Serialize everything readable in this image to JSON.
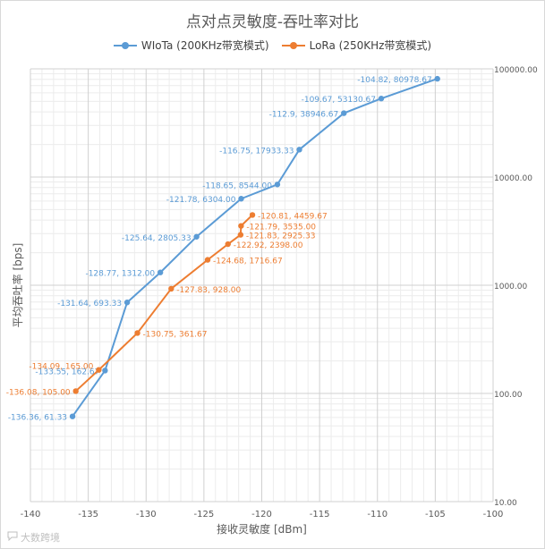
{
  "chart_data": {
    "type": "scatter",
    "title": "点对点灵敏度-吞吐率对比",
    "xlabel": "接收灵敏度 [dBm]",
    "ylabel": "平均吞吐率 [bps]",
    "xlim": [
      -140,
      -100
    ],
    "ylim": [
      10,
      100000
    ],
    "yscale": "log",
    "grid": true,
    "legend_position": "top",
    "x_ticks": [
      "-140",
      "-135",
      "-130",
      "-125",
      "-120",
      "-115",
      "-110",
      "-105",
      "-100"
    ],
    "y_ticks": [
      "10.00",
      "100.00",
      "1000.00",
      "10000.00",
      "100000.00"
    ],
    "series": [
      {
        "name": "WIoTa (200KHz带宽模式)",
        "color": "#5b9bd5",
        "points": [
          {
            "x": -136.36,
            "y": 61.33,
            "label": "-136.36, 61.33"
          },
          {
            "x": -133.55,
            "y": 162.67,
            "label": "-133.55, 162.67"
          },
          {
            "x": -131.64,
            "y": 693.33,
            "label": "-131.64, 693.33"
          },
          {
            "x": -128.77,
            "y": 1312.0,
            "label": "-128.77, 1312.00"
          },
          {
            "x": -125.64,
            "y": 2805.33,
            "label": "-125.64, 2805.33"
          },
          {
            "x": -121.78,
            "y": 6304.0,
            "label": "-121.78, 6304.00"
          },
          {
            "x": -118.65,
            "y": 8544.0,
            "label": "-118.65, 8544.00"
          },
          {
            "x": -116.75,
            "y": 17933.33,
            "label": "-116.75, 17933.33"
          },
          {
            "x": -112.9,
            "y": 38946.67,
            "label": "-112.9, 38946.67"
          },
          {
            "x": -109.67,
            "y": 53130.67,
            "label": "-109.67, 53130.67"
          },
          {
            "x": -104.82,
            "y": 80978.67,
            "label": "-104.82, 80978.67"
          }
        ]
      },
      {
        "name": "LoRa (250KHz带宽模式)",
        "color": "#ed7d31",
        "points": [
          {
            "x": -136.08,
            "y": 105.0,
            "label": "-136.08, 105.00"
          },
          {
            "x": -134.09,
            "y": 165.0,
            "label": "-134.09, 165.00"
          },
          {
            "x": -130.75,
            "y": 361.67,
            "label": "-130.75, 361.67"
          },
          {
            "x": -127.83,
            "y": 928.0,
            "label": "-127.83, 928.00"
          },
          {
            "x": -124.68,
            "y": 1716.67,
            "label": "-124.68, 1716.67"
          },
          {
            "x": -122.92,
            "y": 2398.0,
            "label": "-122.92, 2398.00"
          },
          {
            "x": -121.83,
            "y": 2925.33,
            "label": "-121.83, 2925.33"
          },
          {
            "x": -121.79,
            "y": 3535.0,
            "label": "-121.79, 3535.00"
          },
          {
            "x": -120.81,
            "y": 4459.67,
            "label": "-120.81, 4459.67"
          }
        ]
      }
    ]
  },
  "watermark": {
    "icon": "speech-bubble-icon",
    "text": "大数跨境"
  }
}
